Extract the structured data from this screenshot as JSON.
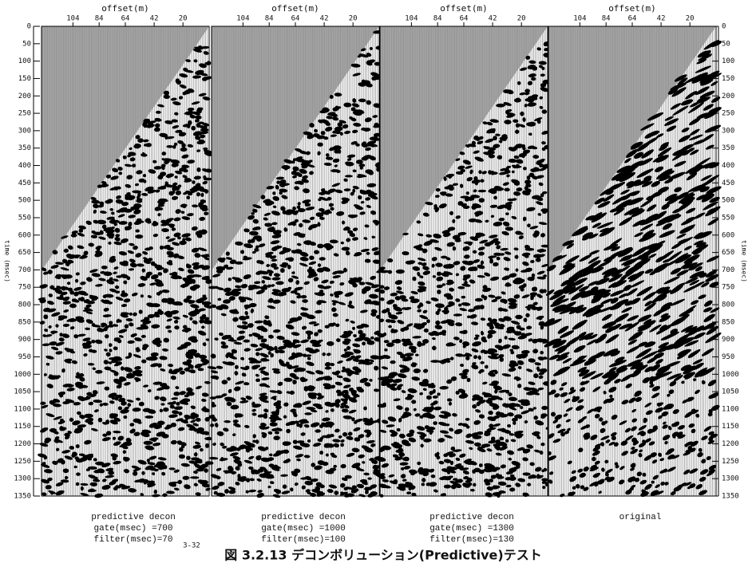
{
  "figure": {
    "title": "図 3.2.13 デコンボリューション(Predictive)テスト",
    "note": "3-32"
  },
  "chart_data": [
    {
      "type": "seismic",
      "xlabel": "offset(m)",
      "xlim": [
        128,
        0
      ],
      "xticks": [
        104,
        84,
        64,
        42,
        20
      ],
      "ylim": [
        0,
        1350
      ],
      "yaxis_side": "left",
      "ylabel": "time (msec)",
      "yticks": [
        0,
        50,
        100,
        150,
        200,
        250,
        300,
        350,
        400,
        450,
        500,
        550,
        600,
        650,
        700,
        750,
        800,
        850,
        900,
        950,
        1000,
        1050,
        1100,
        1150,
        1200,
        1250,
        1300,
        1350
      ],
      "caption": [
        "predictive decon",
        "gate(msec) =700",
        "filter(msec)=70"
      ]
    },
    {
      "type": "seismic",
      "xlabel": "offset(m)",
      "xlim": [
        128,
        0
      ],
      "xticks": [
        104,
        84,
        64,
        42,
        20
      ],
      "ylim": [
        0,
        1350
      ],
      "caption": [
        "predictive decon",
        "gate(msec) =1000",
        "filter(msec)=100"
      ]
    },
    {
      "type": "seismic",
      "xlabel": "offset(m)",
      "xlim": [
        128,
        0
      ],
      "xticks": [
        104,
        84,
        64,
        42,
        20
      ],
      "ylim": [
        0,
        1350
      ],
      "caption": [
        "predictive decon",
        "gate(msec) =1300",
        "filter(msec)=130"
      ]
    },
    {
      "type": "seismic",
      "xlabel": "offset(m)",
      "xlim": [
        128,
        0
      ],
      "xticks": [
        104,
        84,
        64,
        42,
        20
      ],
      "ylim": [
        0,
        1350
      ],
      "yaxis_side": "right",
      "ylabel": "time (msec)",
      "yticks": [
        0,
        50,
        100,
        150,
        200,
        250,
        300,
        350,
        400,
        450,
        500,
        550,
        600,
        650,
        700,
        750,
        800,
        850,
        900,
        950,
        1000,
        1050,
        1100,
        1150,
        1200,
        1250,
        1300,
        1350
      ],
      "caption": [
        "original"
      ]
    }
  ]
}
